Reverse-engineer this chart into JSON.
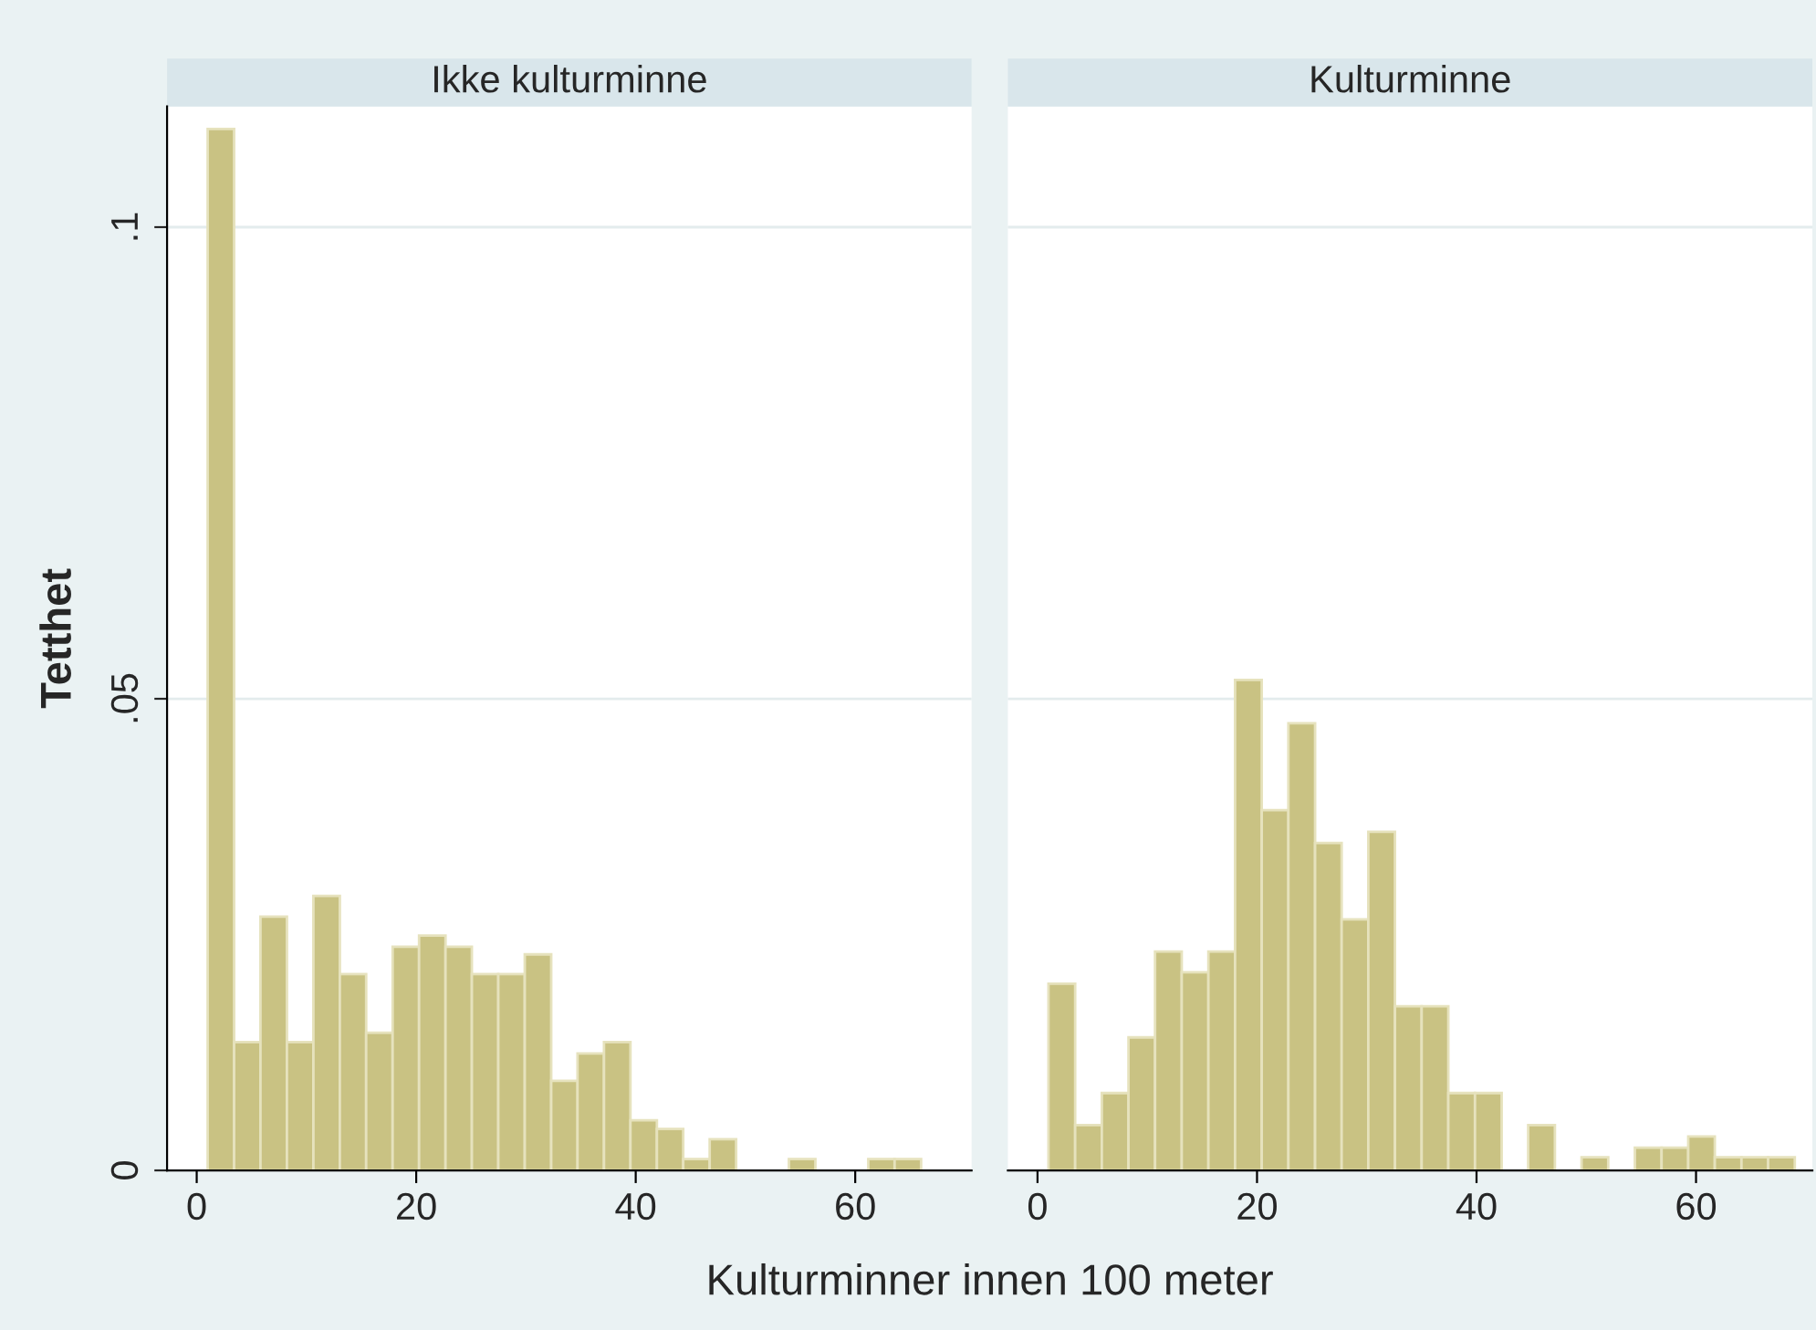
{
  "chart_data": [
    {
      "type": "histogram",
      "title": "Ikke kulturminne",
      "ylabel": "Tetthet",
      "xlabel": "Kulturminner innen 100 meter",
      "color": "#c9c283",
      "bins": [
        1,
        3.41,
        5.81,
        8.22,
        10.63,
        13.04,
        15.44,
        17.85,
        20.26,
        22.67,
        25.07,
        27.48,
        29.89,
        32.3,
        34.7,
        37.11,
        39.52,
        41.93,
        44.33,
        46.74,
        49.15,
        51.56,
        53.96,
        56.37,
        58.78,
        61.19,
        63.59,
        66
      ],
      "values": [
        0.1104,
        0.0136,
        0.0269,
        0.0136,
        0.0291,
        0.0208,
        0.0146,
        0.0237,
        0.0249,
        0.0237,
        0.0208,
        0.0208,
        0.0229,
        0.0095,
        0.0124,
        0.0136,
        0.0053,
        0.0044,
        0.0012,
        0.0033,
        0,
        0,
        0.0012,
        0,
        0,
        0.0012,
        0.0012
      ],
      "xlim": [
        -2.7,
        70.6
      ],
      "ylim": [
        0,
        0.1128
      ],
      "xticks": [
        0,
        20,
        40,
        60
      ],
      "yticks": [
        0,
        {
          "value": 0.05,
          "label": ".05"
        },
        {
          "value": 0.1,
          "label": ".1"
        }
      ],
      "grid": "y"
    },
    {
      "type": "histogram",
      "title": "Kulturminne",
      "color": "#c9c283",
      "bins": [
        1,
        3.43,
        5.86,
        8.29,
        10.71,
        13.14,
        15.57,
        18,
        20.43,
        22.86,
        25.29,
        27.71,
        30.14,
        32.57,
        35,
        37.43,
        39.86,
        42.29,
        44.71,
        47.14,
        49.57,
        52,
        54.43,
        56.86,
        59.29,
        61.71,
        64.14,
        66.57,
        69
      ],
      "values": [
        0.0198,
        0.0048,
        0.0082,
        0.0141,
        0.0232,
        0.021,
        0.0232,
        0.052,
        0.0382,
        0.0474,
        0.0347,
        0.0266,
        0.0359,
        0.0174,
        0.0174,
        0.0082,
        0.0082,
        0,
        0.0048,
        0,
        0.0014,
        0,
        0.0024,
        0.0024,
        0.0036,
        0.0014,
        0.0014,
        0.0014
      ],
      "xlim": [
        -2.7,
        70.6
      ],
      "ylim": [
        0,
        0.1128
      ],
      "xticks": [
        0,
        20,
        40,
        60
      ],
      "yticks": [
        {
          "value": 0,
          "label": null
        },
        {
          "value": 0.05,
          "label": null
        },
        {
          "value": 0.1,
          "label": null
        }
      ],
      "grid": "y",
      "tick_labels": "x"
    }
  ]
}
